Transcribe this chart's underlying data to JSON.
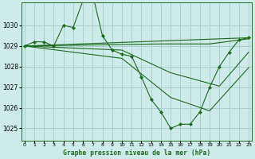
{
  "title": "Graphe pression niveau de la mer (hPa)",
  "background_color": "#ceeaea",
  "grid_color": "#aacece",
  "line_color": "#1a6b1a",
  "marker_color": "#1a6b1a",
  "xlim": [
    -0.3,
    23.3
  ],
  "ylim": [
    1024.4,
    1031.1
  ],
  "yticks": [
    1025,
    1026,
    1027,
    1028,
    1029,
    1030
  ],
  "xtick_labels": [
    "0",
    "1",
    "2",
    "3",
    "4",
    "5",
    "6",
    "7",
    "8",
    "9",
    "10",
    "11",
    "12",
    "13",
    "14",
    "15",
    "16",
    "17",
    "18",
    "19",
    "20",
    "21",
    "22",
    "23"
  ],
  "xtick_pos": [
    0,
    1,
    2,
    3,
    4,
    5,
    6,
    7,
    8,
    9,
    10,
    11,
    12,
    13,
    14,
    15,
    16,
    17,
    18,
    19,
    20,
    21,
    22,
    23
  ],
  "main_series": {
    "x": [
      0,
      1,
      2,
      3,
      4,
      5,
      6,
      7,
      8,
      9,
      10,
      11,
      12,
      13,
      14,
      15,
      16,
      17,
      18,
      19,
      20,
      21,
      22,
      23
    ],
    "y": [
      1029.0,
      1029.2,
      1029.2,
      1029.0,
      1030.0,
      1029.9,
      1031.2,
      1031.5,
      1029.5,
      1028.8,
      1028.6,
      1028.5,
      1027.5,
      1026.4,
      1025.8,
      1025.0,
      1025.2,
      1025.2,
      1025.8,
      1027.0,
      1028.0,
      1028.7,
      1029.3,
      1029.4
    ]
  },
  "extra_lines": [
    {
      "x": [
        0,
        23
      ],
      "y": [
        1029.0,
        1029.4
      ]
    },
    {
      "x": [
        0,
        14,
        19,
        23
      ],
      "y": [
        1029.0,
        1029.1,
        1029.1,
        1029.35
      ]
    },
    {
      "x": [
        0,
        10,
        15,
        20,
        23
      ],
      "y": [
        1029.0,
        1028.8,
        1027.7,
        1027.05,
        1028.7
      ]
    },
    {
      "x": [
        0,
        10,
        15,
        19,
        23
      ],
      "y": [
        1029.0,
        1028.4,
        1026.5,
        1025.85,
        1027.95
      ]
    }
  ]
}
